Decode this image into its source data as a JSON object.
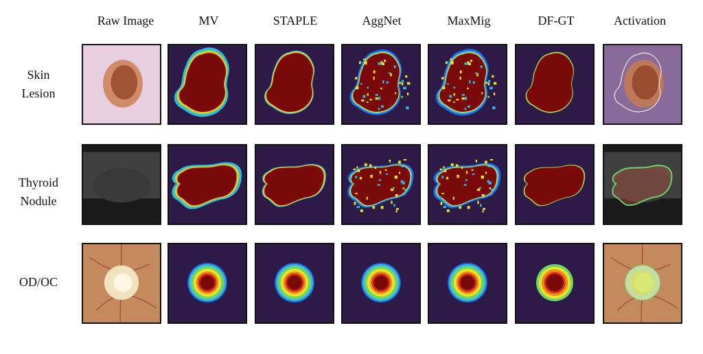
{
  "figure": {
    "columns": [
      "Raw Image",
      "MV",
      "STAPLE",
      "AggNet",
      "MaxMig",
      "DF-GT",
      "Activation"
    ],
    "rows": [
      {
        "label_lines": [
          "Skin",
          "Lesion"
        ],
        "task": "skin"
      },
      {
        "label_lines": [
          "Thyroid",
          "Nodule"
        ],
        "task": "thyroid"
      },
      {
        "label_lines": [
          "OD/OC"
        ],
        "task": "odoc"
      }
    ]
  },
  "colors": {
    "background": "#2d1a47",
    "core": "#7a0a0a",
    "ring_red": "#d42d14",
    "ring_orange": "#f08a1c",
    "ring_yellow": "#e6e622",
    "ring_green": "#6fd46a",
    "ring_cyan": "#2fb8e3",
    "ring_blue": "#2160d8"
  }
}
